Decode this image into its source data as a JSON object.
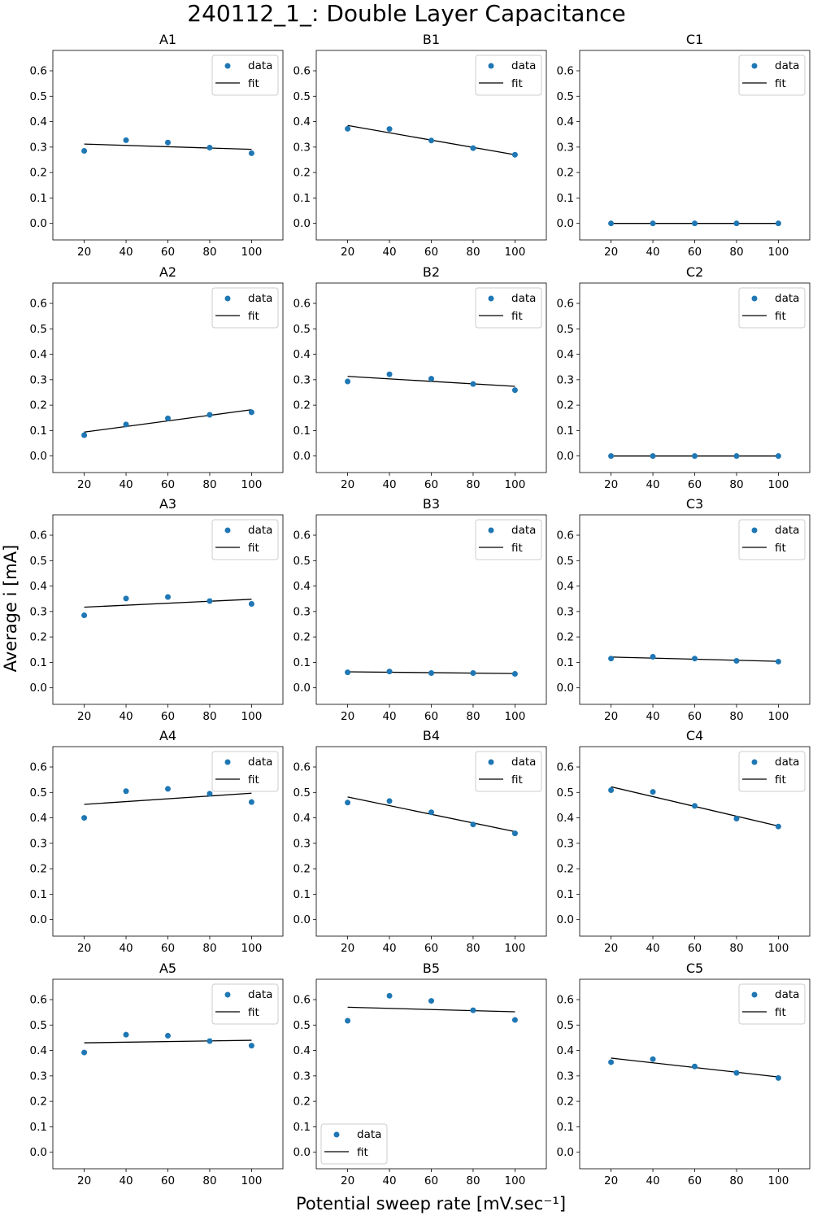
{
  "figure": {
    "title": "240112_1_: Double Layer Capacitance",
    "xlabel": "Potential sweep rate [mV.sec⁻¹]",
    "ylabel": "Average i [mA]",
    "data_color": "#1f77b4",
    "fit_color": "#000000"
  },
  "chart_data": [
    {
      "type": "scatter",
      "title": "A1",
      "x": [
        20,
        40,
        60,
        80,
        100
      ],
      "data": [
        0.285,
        0.327,
        0.318,
        0.298,
        0.276
      ],
      "fit": [
        0.312,
        0.291
      ],
      "xlim": [
        5,
        115
      ],
      "ylim": [
        -0.065,
        0.68
      ],
      "xticks": [
        20,
        40,
        60,
        80,
        100
      ],
      "yticks": [
        0.0,
        0.1,
        0.2,
        0.3,
        0.4,
        0.5,
        0.6
      ],
      "legend": [
        "data",
        "fit"
      ],
      "legend_loc": "upper right"
    },
    {
      "type": "scatter",
      "title": "B1",
      "x": [
        20,
        40,
        60,
        80,
        100
      ],
      "data": [
        0.372,
        0.371,
        0.326,
        0.296,
        0.27
      ],
      "fit": [
        0.385,
        0.27
      ],
      "xlim": [
        5,
        115
      ],
      "ylim": [
        -0.065,
        0.68
      ],
      "xticks": [
        20,
        40,
        60,
        80,
        100
      ],
      "yticks": [
        0.0,
        0.1,
        0.2,
        0.3,
        0.4,
        0.5,
        0.6
      ],
      "legend": [
        "data",
        "fit"
      ],
      "legend_loc": "upper right"
    },
    {
      "type": "scatter",
      "title": "C1",
      "x": [
        20,
        40,
        60,
        80,
        100
      ],
      "data": [
        0.0,
        0.0,
        0.0,
        0.0,
        0.0
      ],
      "fit": [
        0.0,
        0.0
      ],
      "xlim": [
        5,
        115
      ],
      "ylim": [
        -0.065,
        0.68
      ],
      "xticks": [
        20,
        40,
        60,
        80,
        100
      ],
      "yticks": [
        0.0,
        0.1,
        0.2,
        0.3,
        0.4,
        0.5,
        0.6
      ],
      "legend": [
        "data",
        "fit"
      ],
      "legend_loc": "upper right"
    },
    {
      "type": "scatter",
      "title": "A2",
      "x": [
        20,
        40,
        60,
        80,
        100
      ],
      "data": [
        0.082,
        0.124,
        0.148,
        0.162,
        0.172
      ],
      "fit": [
        0.094,
        0.182
      ],
      "xlim": [
        5,
        115
      ],
      "ylim": [
        -0.065,
        0.68
      ],
      "xticks": [
        20,
        40,
        60,
        80,
        100
      ],
      "yticks": [
        0.0,
        0.1,
        0.2,
        0.3,
        0.4,
        0.5,
        0.6
      ],
      "legend": [
        "data",
        "fit"
      ],
      "legend_loc": "upper right"
    },
    {
      "type": "scatter",
      "title": "B2",
      "x": [
        20,
        40,
        60,
        80,
        100
      ],
      "data": [
        0.293,
        0.321,
        0.304,
        0.283,
        0.259
      ],
      "fit": [
        0.313,
        0.274
      ],
      "xlim": [
        5,
        115
      ],
      "ylim": [
        -0.065,
        0.68
      ],
      "xticks": [
        20,
        40,
        60,
        80,
        100
      ],
      "yticks": [
        0.0,
        0.1,
        0.2,
        0.3,
        0.4,
        0.5,
        0.6
      ],
      "legend": [
        "data",
        "fit"
      ],
      "legend_loc": "upper right"
    },
    {
      "type": "scatter",
      "title": "C2",
      "x": [
        20,
        40,
        60,
        80,
        100
      ],
      "data": [
        0.0,
        0.0,
        0.0,
        0.0,
        0.0
      ],
      "fit": [
        0.0,
        0.0
      ],
      "xlim": [
        5,
        115
      ],
      "ylim": [
        -0.065,
        0.68
      ],
      "xticks": [
        20,
        40,
        60,
        80,
        100
      ],
      "yticks": [
        0.0,
        0.1,
        0.2,
        0.3,
        0.4,
        0.5,
        0.6
      ],
      "legend": [
        "data",
        "fit"
      ],
      "legend_loc": "upper right"
    },
    {
      "type": "scatter",
      "title": "A3",
      "x": [
        20,
        40,
        60,
        80,
        100
      ],
      "data": [
        0.285,
        0.351,
        0.357,
        0.341,
        0.33
      ],
      "fit": [
        0.317,
        0.348
      ],
      "xlim": [
        5,
        115
      ],
      "ylim": [
        -0.065,
        0.68
      ],
      "xticks": [
        20,
        40,
        60,
        80,
        100
      ],
      "yticks": [
        0.0,
        0.1,
        0.2,
        0.3,
        0.4,
        0.5,
        0.6
      ],
      "legend": [
        "data",
        "fit"
      ],
      "legend_loc": "upper right"
    },
    {
      "type": "scatter",
      "title": "B3",
      "x": [
        20,
        40,
        60,
        80,
        100
      ],
      "data": [
        0.061,
        0.064,
        0.058,
        0.058,
        0.055
      ],
      "fit": [
        0.063,
        0.056
      ],
      "xlim": [
        5,
        115
      ],
      "ylim": [
        -0.065,
        0.68
      ],
      "xticks": [
        20,
        40,
        60,
        80,
        100
      ],
      "yticks": [
        0.0,
        0.1,
        0.2,
        0.3,
        0.4,
        0.5,
        0.6
      ],
      "legend": [
        "data",
        "fit"
      ],
      "legend_loc": "upper right"
    },
    {
      "type": "scatter",
      "title": "C3",
      "x": [
        20,
        40,
        60,
        80,
        100
      ],
      "data": [
        0.115,
        0.122,
        0.115,
        0.106,
        0.103
      ],
      "fit": [
        0.121,
        0.104
      ],
      "xlim": [
        5,
        115
      ],
      "ylim": [
        -0.065,
        0.68
      ],
      "xticks": [
        20,
        40,
        60,
        80,
        100
      ],
      "yticks": [
        0.0,
        0.1,
        0.2,
        0.3,
        0.4,
        0.5,
        0.6
      ],
      "legend": [
        "data",
        "fit"
      ],
      "legend_loc": "upper right"
    },
    {
      "type": "scatter",
      "title": "A4",
      "x": [
        20,
        40,
        60,
        80,
        100
      ],
      "data": [
        0.4,
        0.505,
        0.514,
        0.495,
        0.462
      ],
      "fit": [
        0.453,
        0.497
      ],
      "xlim": [
        5,
        115
      ],
      "ylim": [
        -0.065,
        0.68
      ],
      "xticks": [
        20,
        40,
        60,
        80,
        100
      ],
      "yticks": [
        0.0,
        0.1,
        0.2,
        0.3,
        0.4,
        0.5,
        0.6
      ],
      "legend": [
        "data",
        "fit"
      ],
      "legend_loc": "upper right"
    },
    {
      "type": "scatter",
      "title": "B4",
      "x": [
        20,
        40,
        60,
        80,
        100
      ],
      "data": [
        0.46,
        0.466,
        0.422,
        0.374,
        0.339
      ],
      "fit": [
        0.482,
        0.346
      ],
      "xlim": [
        5,
        115
      ],
      "ylim": [
        -0.065,
        0.68
      ],
      "xticks": [
        20,
        40,
        60,
        80,
        100
      ],
      "yticks": [
        0.0,
        0.1,
        0.2,
        0.3,
        0.4,
        0.5,
        0.6
      ],
      "legend": [
        "data",
        "fit"
      ],
      "legend_loc": "upper right"
    },
    {
      "type": "scatter",
      "title": "C4",
      "x": [
        20,
        40,
        60,
        80,
        100
      ],
      "data": [
        0.509,
        0.502,
        0.447,
        0.397,
        0.366
      ],
      "fit": [
        0.522,
        0.368
      ],
      "xlim": [
        5,
        115
      ],
      "ylim": [
        -0.065,
        0.68
      ],
      "xticks": [
        20,
        40,
        60,
        80,
        100
      ],
      "yticks": [
        0.0,
        0.1,
        0.2,
        0.3,
        0.4,
        0.5,
        0.6
      ],
      "legend": [
        "data",
        "fit"
      ],
      "legend_loc": "upper right"
    },
    {
      "type": "scatter",
      "title": "A5",
      "x": [
        20,
        40,
        60,
        80,
        100
      ],
      "data": [
        0.392,
        0.462,
        0.458,
        0.437,
        0.419
      ],
      "fit": [
        0.43,
        0.44
      ],
      "xlim": [
        5,
        115
      ],
      "ylim": [
        -0.065,
        0.68
      ],
      "xticks": [
        20,
        40,
        60,
        80,
        100
      ],
      "yticks": [
        0.0,
        0.1,
        0.2,
        0.3,
        0.4,
        0.5,
        0.6
      ],
      "legend": [
        "data",
        "fit"
      ],
      "legend_loc": "upper right"
    },
    {
      "type": "scatter",
      "title": "B5",
      "x": [
        20,
        40,
        60,
        80,
        100
      ],
      "data": [
        0.517,
        0.615,
        0.595,
        0.558,
        0.52
      ],
      "fit": [
        0.57,
        0.552
      ],
      "xlim": [
        5,
        115
      ],
      "ylim": [
        -0.065,
        0.68
      ],
      "xticks": [
        20,
        40,
        60,
        80,
        100
      ],
      "yticks": [
        0.0,
        0.1,
        0.2,
        0.3,
        0.4,
        0.5,
        0.6
      ],
      "legend": [
        "data",
        "fit"
      ],
      "legend_loc": "lower left"
    },
    {
      "type": "scatter",
      "title": "C5",
      "x": [
        20,
        40,
        60,
        80,
        100
      ],
      "data": [
        0.354,
        0.366,
        0.337,
        0.312,
        0.292
      ],
      "fit": [
        0.37,
        0.296
      ],
      "xlim": [
        5,
        115
      ],
      "ylim": [
        -0.065,
        0.68
      ],
      "xticks": [
        20,
        40,
        60,
        80,
        100
      ],
      "yticks": [
        0.0,
        0.1,
        0.2,
        0.3,
        0.4,
        0.5,
        0.6
      ],
      "legend": [
        "data",
        "fit"
      ],
      "legend_loc": "upper right"
    }
  ]
}
